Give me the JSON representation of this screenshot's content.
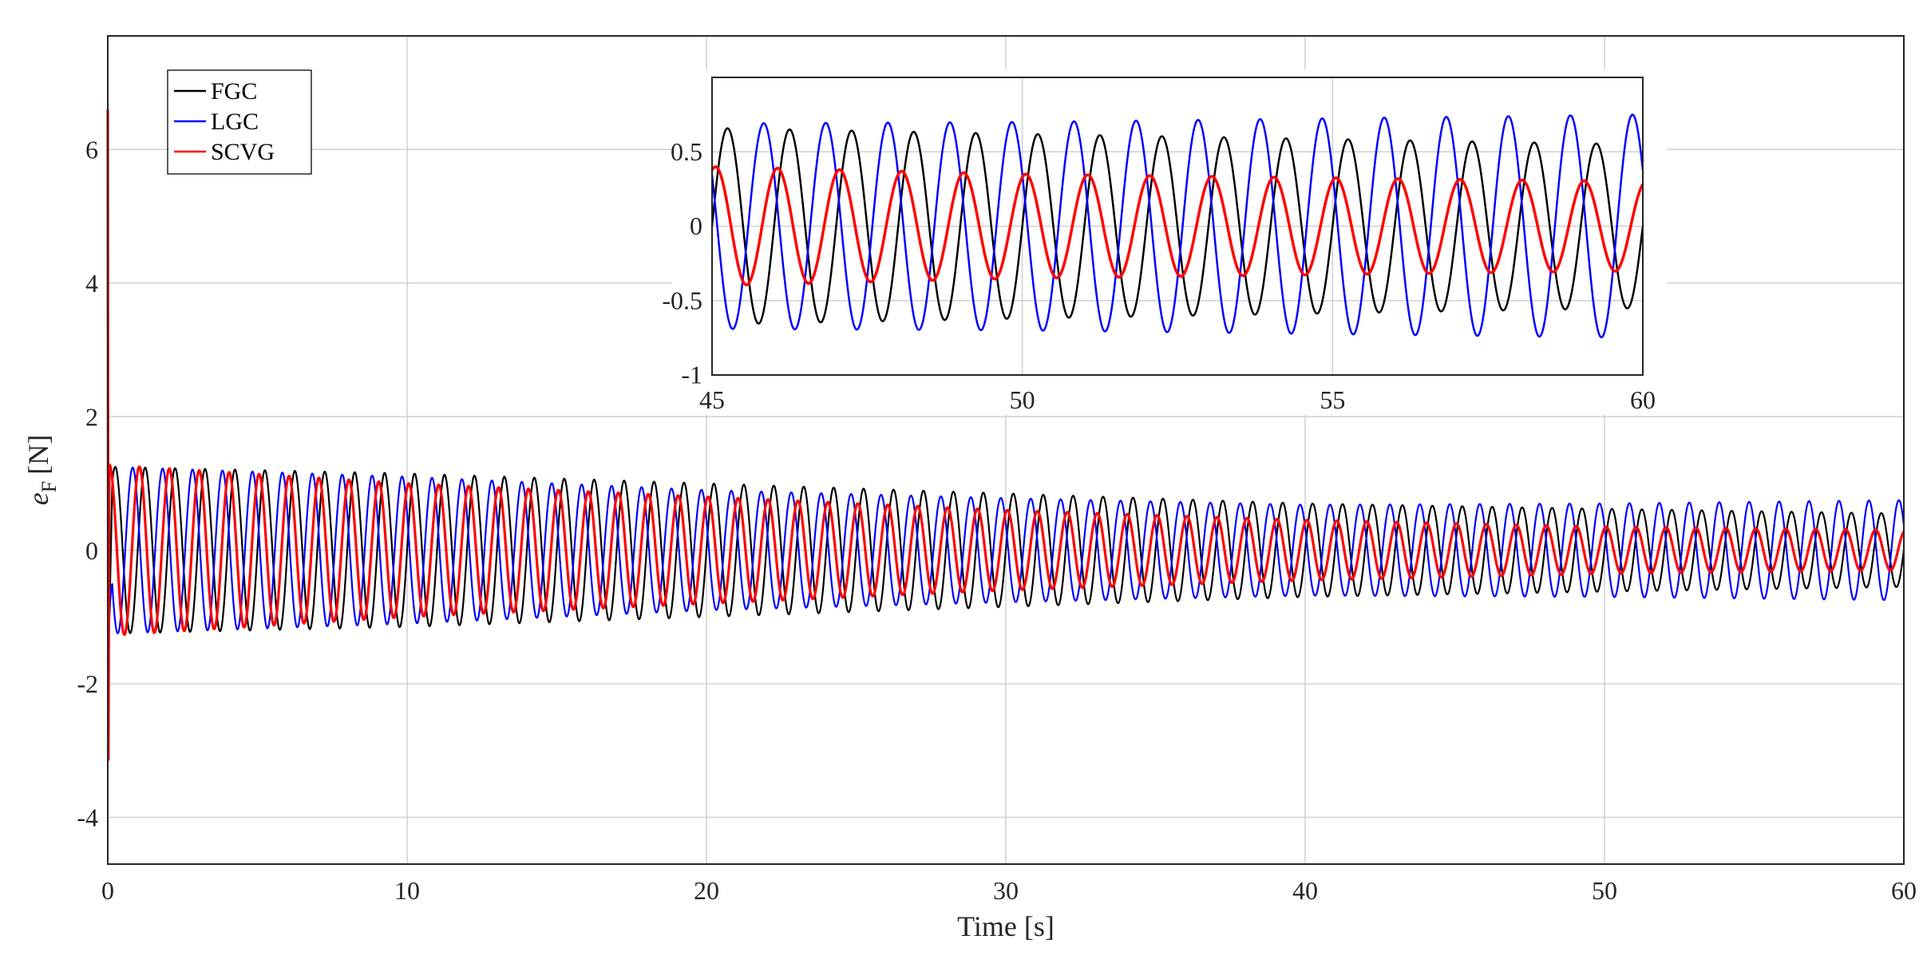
{
  "chart_data": [
    {
      "type": "line",
      "title": "",
      "xlabel": "Time [s]",
      "ylabel_main": "e",
      "ylabel_sub": "F",
      "ylabel_unit": "[N]",
      "xlim": [
        0,
        60
      ],
      "ylim": [
        -4.7,
        7.7
      ],
      "x_ticks": [
        0,
        10,
        20,
        30,
        40,
        50,
        60
      ],
      "x_tick_labels": [
        "0",
        "10",
        "20",
        "30",
        "40",
        "50",
        "60"
      ],
      "y_ticks": [
        -4,
        -2,
        0,
        2,
        4,
        6
      ],
      "y_tick_labels": [
        "-4",
        "-2",
        "0",
        "2",
        "4",
        "6"
      ],
      "grid": true,
      "legend_position": "top-left",
      "oscillation_period_s": 1.0,
      "series": [
        {
          "name": "FGC",
          "color": "#000000",
          "amplitude_envelope": {
            "t": [
              0,
              10,
              20,
              30,
              40,
              50,
              60
            ],
            "amp": [
              1.25,
              1.15,
              1.0,
              0.85,
              0.7,
              0.62,
              0.55
            ]
          },
          "phase_deg": 0,
          "initial_transient": {
            "t": [
              0,
              0.15
            ],
            "min": -1.7
          }
        },
        {
          "name": "LGC",
          "color": "#0000ff",
          "amplitude_envelope": {
            "t": [
              0,
              10,
              20,
              30,
              40,
              50,
              60
            ],
            "amp": [
              1.25,
              1.1,
              0.9,
              0.78,
              0.68,
              0.7,
              0.75
            ]
          },
          "phase_deg": 150,
          "initial_transient": {
            "t": [
              0,
              0.15
            ],
            "min": -1.7
          }
        },
        {
          "name": "SCVG",
          "color": "#ff0000",
          "amplitude_envelope": {
            "t": [
              0,
              10,
              20,
              30,
              40,
              50,
              60
            ],
            "amp": [
              1.28,
              1.0,
              0.8,
              0.6,
              0.45,
              0.35,
              0.3
            ]
          },
          "phase_deg": 70,
          "initial_transient": {
            "t": [
              0,
              0.05
            ],
            "max": 6.6,
            "min": -3.5
          }
        }
      ]
    },
    {
      "type": "line",
      "title": "",
      "inset": true,
      "xlim": [
        45,
        60
      ],
      "ylim": [
        -1,
        1
      ],
      "x_ticks": [
        45,
        50,
        55,
        60
      ],
      "x_tick_labels": [
        "45",
        "50",
        "55",
        "60"
      ],
      "y_ticks": [
        -1,
        -0.5,
        0,
        0.5
      ],
      "y_tick_labels": [
        "-1",
        "-0.5",
        "0",
        "0.5"
      ],
      "grid": true,
      "series_ref": [
        "FGC",
        "LGC",
        "SCVG"
      ]
    }
  ]
}
